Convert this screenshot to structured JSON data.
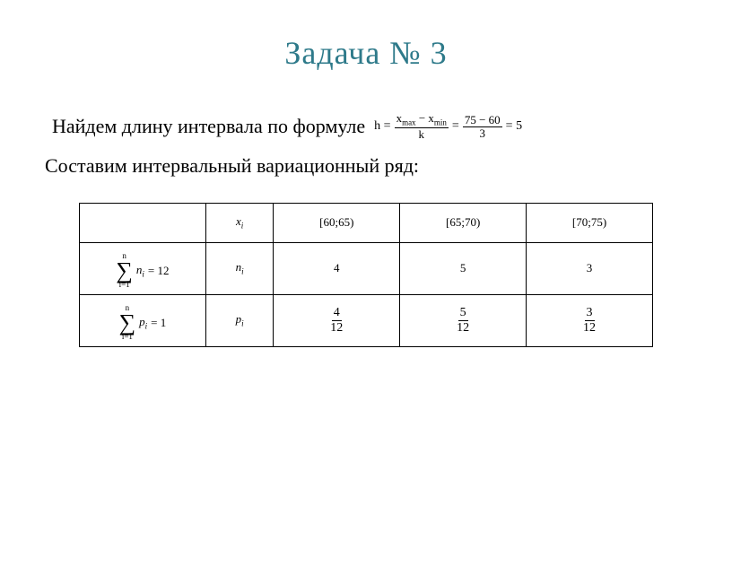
{
  "title": "Задача № 3",
  "line1": "Найдем длину интервала по формуле",
  "line2": "Составим интервальный вариационный ряд:",
  "formula": {
    "lhs": "h =",
    "frac1_num": "x",
    "frac1_num_sub1": "max",
    "frac1_mid": "− x",
    "frac1_num_sub2": "min",
    "frac1_den": "k",
    "eq1": "=",
    "frac2_num": "75 − 60",
    "frac2_den": "3",
    "eq2": "= 5"
  },
  "table": {
    "header_label": "x",
    "header_label_sub": "i",
    "intervals": [
      "[60;65)",
      "[65;70)",
      "[70;75)"
    ],
    "n_label": "n",
    "n_label_sub": "i",
    "n_sum_upper": "n",
    "n_sum_lower": "i=1",
    "n_sum_expr_var": "n",
    "n_sum_expr_sub": "i",
    "n_sum_rhs": "= 12",
    "n_values": [
      "4",
      "5",
      "3"
    ],
    "p_label": "p",
    "p_label_sub": "i",
    "p_sum_upper": "n",
    "p_sum_lower": "i=1",
    "p_sum_expr_var": "p",
    "p_sum_expr_sub": "i",
    "p_sum_rhs": "= 1",
    "p_fracs": [
      {
        "num": "4",
        "den": "12"
      },
      {
        "num": "5",
        "den": "12"
      },
      {
        "num": "3",
        "den": "12"
      }
    ]
  },
  "colors": {
    "title": "#2e7a8a",
    "text": "#000000",
    "border": "#000000",
    "background": "#ffffff"
  }
}
